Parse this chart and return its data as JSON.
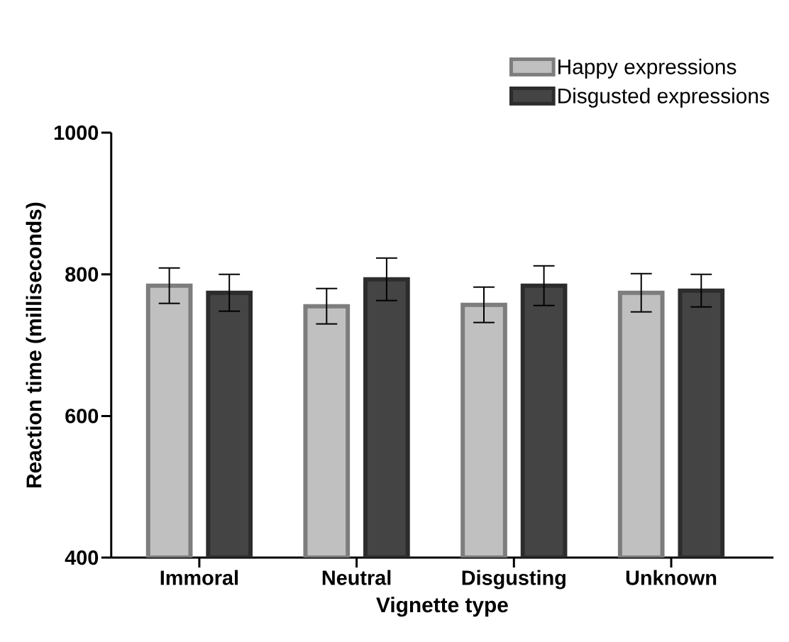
{
  "chart_data": {
    "type": "bar",
    "xlabel": "Vignette type",
    "ylabel": "Reaction time (milliseconds)",
    "categories": [
      "Immoral",
      "Neutral",
      "Disgusting",
      "Unknown"
    ],
    "series": [
      {
        "name": "Happy expressions",
        "color": "#c0c0c0",
        "values": [
          784,
          755,
          757,
          774
        ],
        "errors": [
          25,
          25,
          25,
          27
        ]
      },
      {
        "name": "Disgusted expressions",
        "color": "#444444",
        "values": [
          774,
          793,
          784,
          777
        ],
        "errors": [
          26,
          30,
          28,
          23
        ]
      }
    ],
    "ylim": [
      400,
      1000
    ],
    "yticks": [
      400,
      600,
      800,
      1000
    ],
    "legend": "top right"
  }
}
